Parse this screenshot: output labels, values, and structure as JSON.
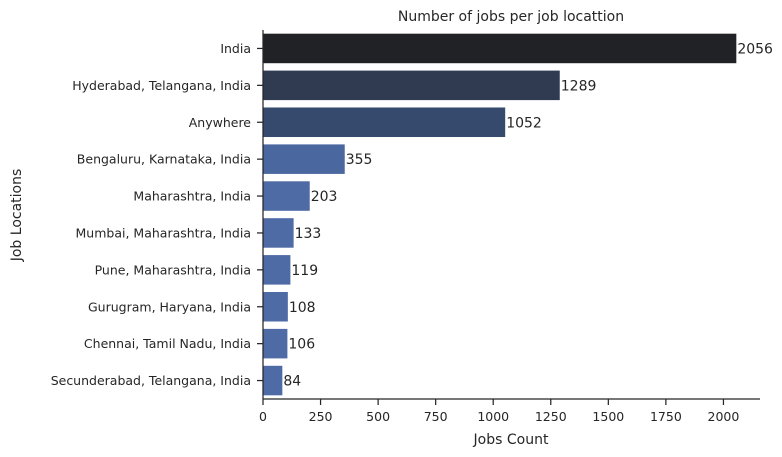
{
  "chart_data": {
    "type": "bar",
    "orientation": "horizontal",
    "title": "Number of jobs per job locattion",
    "xlabel": "Jobs Count",
    "ylabel": "Job Locations",
    "categories": [
      "India",
      "Hyderabad, Telangana, India",
      "Anywhere",
      "Bengaluru, Karnataka, India",
      "Maharashtra, India",
      "Mumbai, Maharashtra, India",
      "Pune, Maharashtra, India",
      "Gurugram, Haryana, India",
      "Chennai, Tamil Nadu, India",
      "Secunderabad, Telangana, India"
    ],
    "values": [
      2056,
      1289,
      1052,
      355,
      203,
      133,
      119,
      108,
      106,
      84
    ],
    "data_labels": [
      "2056",
      "1289",
      "1052",
      "355",
      "203",
      "133",
      "119",
      "108",
      "106",
      "84"
    ],
    "xticks": [
      0,
      250,
      500,
      750,
      1000,
      1250,
      1500,
      1750,
      2000
    ],
    "xtick_labels": [
      "0",
      "250",
      "500",
      "750",
      "1000",
      "1250",
      "1500",
      "1750",
      "2000"
    ],
    "xlim": [
      0,
      2158.8
    ],
    "grid": false,
    "legend": "none",
    "bar_colors": [
      "#212226",
      "#303a50",
      "#364a6e",
      "#4a67a0",
      "#4f6ba6",
      "#4f6ba6",
      "#4f6ba6",
      "#4f6ba6",
      "#4f6ba6",
      "#4f6ba6"
    ],
    "axis_color": "#262626"
  }
}
